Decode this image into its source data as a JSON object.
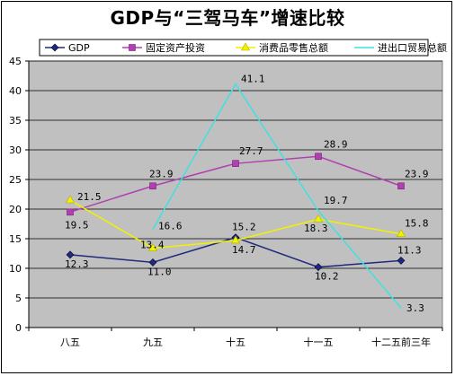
{
  "chart_data": {
    "type": "line",
    "title": "GDP与“三驾马车”增速比较",
    "xlabel": "",
    "ylabel": "",
    "ylim": [
      0,
      45
    ],
    "yticks": [
      0,
      5,
      10,
      15,
      20,
      25,
      30,
      35,
      40,
      45
    ],
    "grid": true,
    "legend_position": "top",
    "plot_background": "#c0c0c0",
    "categories": [
      "八五",
      "九五",
      "十五",
      "十一五",
      "十二五前三年"
    ],
    "series": [
      {
        "name": "GDP",
        "color": "#1f2a7a",
        "marker": "diamond",
        "values": [
          12.3,
          11.0,
          15.2,
          10.2,
          11.3
        ],
        "labels": [
          "12.3",
          "11.0",
          "15.2",
          "10.2",
          "11.3"
        ]
      },
      {
        "name": "固定资产投资",
        "color": "#b040b0",
        "marker": "square",
        "values": [
          19.5,
          23.9,
          27.7,
          28.9,
          23.9
        ],
        "labels": [
          "19.5",
          "23.9",
          "27.7",
          "28.9",
          "23.9"
        ]
      },
      {
        "name": "消费品零售总额",
        "color": "#f2f200",
        "marker": "triangle",
        "values": [
          21.5,
          13.4,
          14.7,
          18.3,
          15.8
        ],
        "labels": [
          "21.5",
          "13.4",
          "14.7",
          "18.3",
          "15.8"
        ]
      },
      {
        "name": "进出口贸易总额",
        "color": "#40e0e0",
        "marker": "none",
        "values": [
          null,
          16.6,
          41.1,
          19.7,
          3.3
        ],
        "labels": [
          null,
          "16.6",
          "41.1",
          "19.7",
          "3.3"
        ]
      }
    ]
  }
}
